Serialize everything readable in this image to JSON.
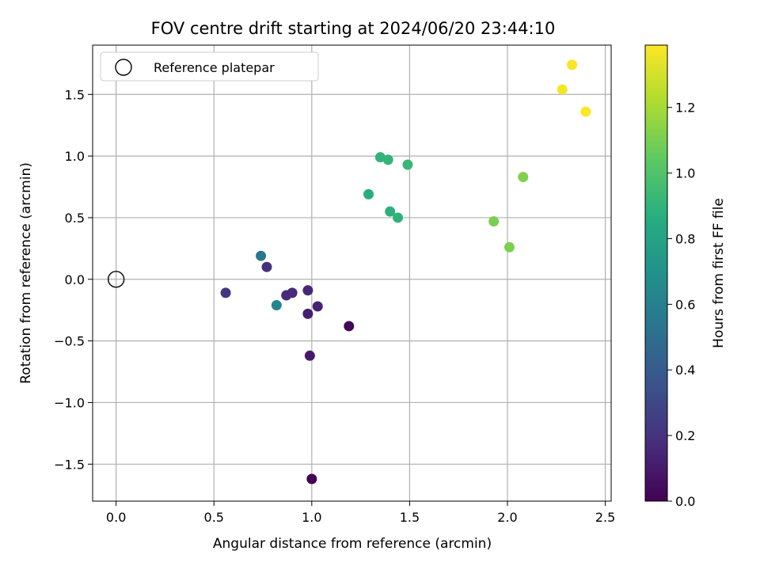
{
  "chart_data": {
    "type": "scatter",
    "title": "FOV centre drift starting at 2024/06/20 23:44:10",
    "xlabel": "Angular distance from reference (arcmin)",
    "ylabel": "Rotation from reference (arcmin)",
    "xlim": [
      -0.12,
      2.53
    ],
    "ylim": [
      -1.8,
      1.9
    ],
    "xticks": [
      0.0,
      0.5,
      1.0,
      1.5,
      2.0,
      2.5
    ],
    "xtick_labels": [
      "0.0",
      "0.5",
      "1.0",
      "1.5",
      "2.0",
      "2.5"
    ],
    "yticks": [
      -1.5,
      -1.0,
      -0.5,
      0.0,
      0.5,
      1.0,
      1.5
    ],
    "ytick_labels": [
      "−1.5",
      "−1.0",
      "−0.5",
      "0.0",
      "0.5",
      "1.0",
      "1.5"
    ],
    "grid": true,
    "legend": {
      "placement": "upper-left",
      "entries": [
        "Reference platepar"
      ]
    },
    "reference_point": {
      "x": 0.0,
      "y": 0.0
    },
    "colorbar": {
      "label": "Hours from first FF file",
      "colormap": "viridis",
      "range": [
        0.0,
        1.39
      ],
      "ticks": [
        0.0,
        0.2,
        0.4,
        0.6,
        0.8,
        1.0,
        1.2
      ],
      "tick_labels": [
        "0.0",
        "0.2",
        "0.4",
        "0.6",
        "0.8",
        "1.0",
        "1.2"
      ]
    },
    "points": [
      {
        "x": 1.0,
        "y": -1.62,
        "t": 0.0
      },
      {
        "x": 1.19,
        "y": -0.38,
        "t": 0.02
      },
      {
        "x": 0.99,
        "y": -0.62,
        "t": 0.1
      },
      {
        "x": 0.98,
        "y": -0.28,
        "t": 0.12
      },
      {
        "x": 1.03,
        "y": -0.22,
        "t": 0.14
      },
      {
        "x": 0.98,
        "y": -0.09,
        "t": 0.15
      },
      {
        "x": 0.9,
        "y": -0.11,
        "t": 0.16
      },
      {
        "x": 0.87,
        "y": -0.13,
        "t": 0.17
      },
      {
        "x": 0.77,
        "y": 0.1,
        "t": 0.19
      },
      {
        "x": 0.56,
        "y": -0.11,
        "t": 0.22
      },
      {
        "x": 0.74,
        "y": 0.19,
        "t": 0.55
      },
      {
        "x": 0.82,
        "y": -0.21,
        "t": 0.62
      },
      {
        "x": 1.29,
        "y": 0.69,
        "t": 0.86
      },
      {
        "x": 1.4,
        "y": 0.55,
        "t": 0.88
      },
      {
        "x": 1.44,
        "y": 0.5,
        "t": 0.89
      },
      {
        "x": 1.35,
        "y": 0.99,
        "t": 0.9
      },
      {
        "x": 1.39,
        "y": 0.97,
        "t": 0.91
      },
      {
        "x": 1.49,
        "y": 0.93,
        "t": 0.92
      },
      {
        "x": 1.93,
        "y": 0.47,
        "t": 1.1
      },
      {
        "x": 2.01,
        "y": 0.26,
        "t": 1.11
      },
      {
        "x": 2.08,
        "y": 0.83,
        "t": 1.12
      },
      {
        "x": 2.28,
        "y": 1.54,
        "t": 1.37
      },
      {
        "x": 2.33,
        "y": 1.74,
        "t": 1.38
      },
      {
        "x": 2.4,
        "y": 1.36,
        "t": 1.39
      }
    ]
  }
}
